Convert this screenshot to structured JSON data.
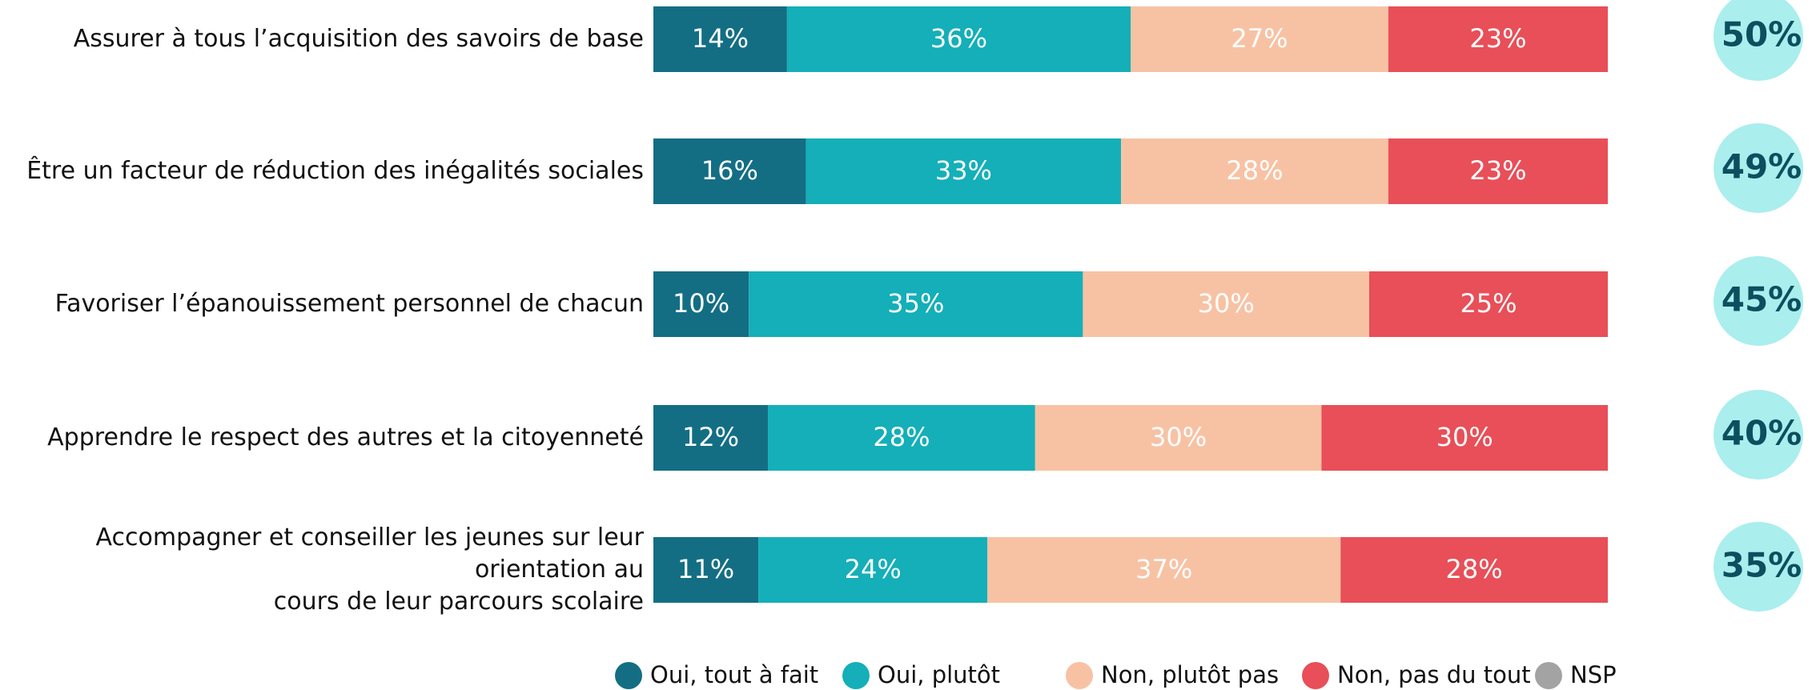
{
  "chart_data": {
    "type": "stacked-bar-horizontal",
    "categories": [
      "Assurer à tous l’acquisition des savoirs de base",
      "Être un facteur de réduction des inégalités sociales",
      "Favoriser l’épanouissement personnel de chacun",
      "Apprendre le respect des autres et la citoyenneté",
      "Accompagner et conseiller les jeunes sur leur orientation au\ncours de leur parcours scolaire"
    ],
    "series": [
      {
        "name": "Oui, tout à fait",
        "color": "#136e84",
        "values": [
          14,
          16,
          10,
          12,
          11
        ],
        "value_labels": [
          "14%",
          "16%",
          "10%",
          "12%",
          "11%"
        ]
      },
      {
        "name": "Oui, plutôt",
        "color": "#14afb8",
        "values": [
          36,
          33,
          35,
          28,
          24
        ],
        "value_labels": [
          "36%",
          "33%",
          "35%",
          "28%",
          "24%"
        ]
      },
      {
        "name": "Non, plutôt pas",
        "color": "#f7c2a4",
        "values": [
          27,
          28,
          30,
          30,
          37
        ],
        "value_labels": [
          "27%",
          "28%",
          "30%",
          "30%",
          "37%"
        ]
      },
      {
        "name": "Non, pas du tout",
        "color": "#e84f58",
        "values": [
          23,
          23,
          25,
          30,
          28
        ],
        "value_labels": [
          "23%",
          "23%",
          "25%",
          "30%",
          "28%"
        ]
      },
      {
        "name": "NSP",
        "color": "#a3a3a3",
        "values": [
          0,
          0,
          0,
          0,
          0
        ]
      }
    ],
    "totals": {
      "color": "#aaeeee",
      "values": [
        50,
        49,
        45,
        40,
        35
      ],
      "value_labels": [
        "50%",
        "49%",
        "45%",
        "40%",
        "35%"
      ]
    }
  }
}
